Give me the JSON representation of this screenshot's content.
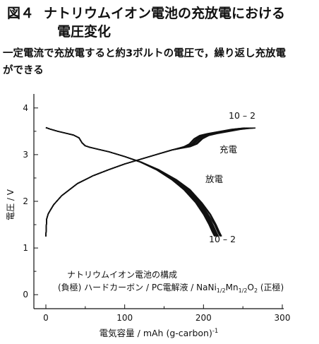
{
  "figure": {
    "number": "図４",
    "title_line1": "ナトリウムイオン電池の充放電における",
    "title_line2": "電圧変化",
    "subtitle_line1": "一定電流で充放電すると約3ボルトの電圧で，繰り返し充放電",
    "subtitle_line2": "ができる"
  },
  "chart_data": {
    "type": "line",
    "title": "",
    "xlabel": "電気容量 / mAh (g-carbon)",
    "xlabel_superscript": "-1",
    "ylabel": "電圧 / V",
    "xlim": [
      0,
      300
    ],
    "ylim": [
      -0.3,
      4.3
    ],
    "xticks": [
      0,
      100,
      200,
      300
    ],
    "yticks": [
      0,
      1,
      2,
      3,
      4
    ],
    "grid": false,
    "cycles": "10 – 2",
    "series": [
      {
        "name": "充電",
        "cycle_label": "10 – 2",
        "curves": [
          {
            "x": [
              0,
              1,
              3,
              6,
              10,
              20,
              40,
              60,
              80,
              100,
              120,
              140,
              160,
              175,
              182,
              188,
              195,
              205,
              215,
              225,
              235,
              245,
              252
            ],
            "y": [
              1.25,
              1.62,
              1.73,
              1.82,
              1.93,
              2.12,
              2.38,
              2.55,
              2.68,
              2.8,
              2.9,
              3.0,
              3.1,
              3.17,
              3.23,
              3.34,
              3.41,
              3.45,
              3.48,
              3.51,
              3.54,
              3.56,
              3.57
            ]
          },
          {
            "x": [
              0,
              1,
              3,
              6,
              10,
              20,
              40,
              60,
              80,
              100,
              120,
              140,
              160,
              176,
              183,
              189,
              196,
              206,
              216,
              226,
              236,
              246,
              253
            ],
            "y": [
              1.25,
              1.62,
              1.73,
              1.82,
              1.93,
              2.12,
              2.38,
              2.55,
              2.68,
              2.8,
              2.9,
              3.0,
              3.1,
              3.17,
              3.23,
              3.34,
              3.41,
              3.45,
              3.48,
              3.51,
              3.54,
              3.56,
              3.57
            ]
          },
          {
            "x": [
              0,
              1,
              3,
              6,
              10,
              20,
              40,
              60,
              80,
              100,
              120,
              140,
              160,
              177,
              185,
              191,
              198,
              208,
              218,
              228,
              238,
              248,
              255
            ],
            "y": [
              1.25,
              1.62,
              1.73,
              1.82,
              1.93,
              2.12,
              2.38,
              2.55,
              2.68,
              2.8,
              2.9,
              3.0,
              3.1,
              3.17,
              3.23,
              3.34,
              3.41,
              3.45,
              3.48,
              3.51,
              3.54,
              3.56,
              3.57
            ]
          },
          {
            "x": [
              0,
              1,
              3,
              6,
              10,
              20,
              40,
              60,
              80,
              100,
              120,
              140,
              160,
              178,
              186,
              192,
              199,
              209,
              219,
              229,
              239,
              249,
              256
            ],
            "y": [
              1.25,
              1.62,
              1.73,
              1.82,
              1.93,
              2.12,
              2.38,
              2.55,
              2.68,
              2.8,
              2.9,
              3.0,
              3.1,
              3.17,
              3.23,
              3.34,
              3.41,
              3.45,
              3.48,
              3.51,
              3.54,
              3.56,
              3.57
            ]
          },
          {
            "x": [
              0,
              1,
              3,
              6,
              10,
              20,
              40,
              60,
              80,
              100,
              120,
              140,
              160,
              179,
              187,
              194,
              201,
              211,
              221,
              231,
              241,
              251,
              258
            ],
            "y": [
              1.25,
              1.62,
              1.73,
              1.82,
              1.93,
              2.12,
              2.38,
              2.55,
              2.68,
              2.8,
              2.9,
              3.0,
              3.1,
              3.17,
              3.23,
              3.34,
              3.41,
              3.45,
              3.48,
              3.51,
              3.54,
              3.56,
              3.57
            ]
          },
          {
            "x": [
              0,
              1,
              3,
              6,
              10,
              20,
              40,
              60,
              80,
              100,
              120,
              140,
              160,
              180,
              188,
              195,
              202,
              212,
              222,
              232,
              242,
              252,
              260
            ],
            "y": [
              1.25,
              1.62,
              1.73,
              1.82,
              1.93,
              2.12,
              2.38,
              2.55,
              2.68,
              2.8,
              2.9,
              3.0,
              3.1,
              3.17,
              3.23,
              3.34,
              3.41,
              3.45,
              3.48,
              3.51,
              3.54,
              3.56,
              3.57
            ]
          },
          {
            "x": [
              0,
              1,
              3,
              6,
              10,
              20,
              40,
              60,
              80,
              100,
              120,
              140,
              160,
              181,
              190,
              197,
              204,
              214,
              224,
              234,
              244,
              254,
              262
            ],
            "y": [
              1.25,
              1.62,
              1.73,
              1.82,
              1.93,
              2.12,
              2.38,
              2.55,
              2.68,
              2.8,
              2.9,
              3.0,
              3.1,
              3.17,
              3.23,
              3.34,
              3.41,
              3.45,
              3.48,
              3.51,
              3.54,
              3.56,
              3.57
            ]
          },
          {
            "x": [
              0,
              1,
              3,
              6,
              10,
              20,
              40,
              60,
              80,
              100,
              120,
              140,
              160,
              182,
              191,
              198,
              205,
              215,
              225,
              235,
              245,
              255,
              264
            ],
            "y": [
              1.25,
              1.62,
              1.73,
              1.82,
              1.93,
              2.12,
              2.38,
              2.55,
              2.68,
              2.8,
              2.9,
              3.0,
              3.1,
              3.17,
              3.23,
              3.34,
              3.41,
              3.45,
              3.48,
              3.51,
              3.54,
              3.56,
              3.57
            ]
          },
          {
            "x": [
              0,
              1,
              3,
              6,
              10,
              20,
              40,
              60,
              80,
              100,
              120,
              140,
              160,
              183,
              192,
              199,
              207,
              217,
              227,
              237,
              247,
              257,
              266
            ],
            "y": [
              1.25,
              1.62,
              1.73,
              1.82,
              1.93,
              2.12,
              2.38,
              2.55,
              2.68,
              2.8,
              2.9,
              3.0,
              3.1,
              3.17,
              3.23,
              3.34,
              3.41,
              3.45,
              3.48,
              3.51,
              3.54,
              3.56,
              3.57
            ]
          }
        ]
      },
      {
        "name": "放電",
        "cycle_label": "10 – 2",
        "curves": [
          {
            "x": [
              0,
              5,
              15,
              25,
              35,
              42,
              46,
              50,
              55,
              65,
              80,
              100,
              120,
              140,
              160,
              175,
              190,
              200,
              207,
              211,
              214
            ],
            "y": [
              3.58,
              3.55,
              3.5,
              3.46,
              3.42,
              3.36,
              3.25,
              3.19,
              3.16,
              3.12,
              3.06,
              2.96,
              2.84,
              2.68,
              2.46,
              2.25,
              1.97,
              1.72,
              1.5,
              1.35,
              1.25
            ]
          },
          {
            "x": [
              0,
              5,
              15,
              25,
              35,
              42,
              46,
              50,
              55,
              65,
              80,
              100,
              120,
              140,
              160,
              176,
              191,
              201,
              208,
              212,
              215
            ],
            "y": [
              3.58,
              3.55,
              3.5,
              3.46,
              3.42,
              3.36,
              3.25,
              3.19,
              3.16,
              3.12,
              3.06,
              2.96,
              2.84,
              2.68,
              2.46,
              2.25,
              1.97,
              1.72,
              1.5,
              1.35,
              1.25
            ]
          },
          {
            "x": [
              0,
              5,
              15,
              25,
              35,
              42,
              46,
              50,
              55,
              65,
              80,
              100,
              120,
              140,
              161,
              177,
              192,
              202,
              209,
              213,
              216
            ],
            "y": [
              3.58,
              3.55,
              3.5,
              3.46,
              3.42,
              3.36,
              3.25,
              3.19,
              3.16,
              3.12,
              3.06,
              2.96,
              2.84,
              2.68,
              2.46,
              2.25,
              1.97,
              1.72,
              1.5,
              1.35,
              1.25
            ]
          },
          {
            "x": [
              0,
              5,
              15,
              25,
              35,
              42,
              46,
              50,
              55,
              65,
              80,
              100,
              120,
              141,
              162,
              178,
              193,
              203,
              210,
              214,
              217
            ],
            "y": [
              3.58,
              3.55,
              3.5,
              3.46,
              3.42,
              3.36,
              3.25,
              3.19,
              3.16,
              3.12,
              3.06,
              2.96,
              2.84,
              2.68,
              2.46,
              2.25,
              1.97,
              1.72,
              1.5,
              1.35,
              1.25
            ]
          },
          {
            "x": [
              0,
              5,
              15,
              25,
              35,
              42,
              46,
              50,
              55,
              65,
              80,
              100,
              120,
              141,
              162,
              179,
              194,
              204,
              211,
              215,
              218
            ],
            "y": [
              3.58,
              3.55,
              3.5,
              3.46,
              3.42,
              3.36,
              3.25,
              3.19,
              3.16,
              3.12,
              3.06,
              2.96,
              2.84,
              2.68,
              2.46,
              2.25,
              1.97,
              1.72,
              1.5,
              1.35,
              1.25
            ]
          },
          {
            "x": [
              0,
              5,
              15,
              25,
              35,
              42,
              46,
              50,
              55,
              65,
              80,
              100,
              121,
              142,
              163,
              180,
              195,
              205,
              212,
              216,
              219
            ],
            "y": [
              3.58,
              3.55,
              3.5,
              3.46,
              3.42,
              3.36,
              3.25,
              3.19,
              3.16,
              3.12,
              3.06,
              2.96,
              2.84,
              2.68,
              2.46,
              2.25,
              1.97,
              1.72,
              1.5,
              1.35,
              1.25
            ]
          },
          {
            "x": [
              0,
              5,
              15,
              25,
              35,
              42,
              46,
              50,
              55,
              65,
              80,
              100,
              121,
              142,
              164,
              181,
              196,
              206,
              214,
              218,
              221
            ],
            "y": [
              3.58,
              3.55,
              3.5,
              3.46,
              3.42,
              3.36,
              3.25,
              3.19,
              3.16,
              3.12,
              3.06,
              2.96,
              2.84,
              2.68,
              2.46,
              2.25,
              1.97,
              1.72,
              1.5,
              1.35,
              1.25
            ]
          },
          {
            "x": [
              0,
              5,
              15,
              25,
              35,
              42,
              46,
              50,
              55,
              65,
              80,
              100,
              121,
              143,
              165,
              182,
              197,
              208,
              215,
              219,
              222
            ],
            "y": [
              3.58,
              3.55,
              3.5,
              3.46,
              3.42,
              3.36,
              3.25,
              3.19,
              3.16,
              3.12,
              3.06,
              2.96,
              2.84,
              2.68,
              2.46,
              2.25,
              1.97,
              1.72,
              1.5,
              1.35,
              1.25
            ]
          },
          {
            "x": [
              0,
              5,
              15,
              25,
              35,
              42,
              46,
              50,
              55,
              65,
              80,
              100,
              121,
              143,
              166,
              183,
              198,
              209,
              216,
              220,
              223
            ],
            "y": [
              3.58,
              3.55,
              3.5,
              3.46,
              3.42,
              3.36,
              3.25,
              3.19,
              3.16,
              3.12,
              3.06,
              2.96,
              2.84,
              2.68,
              2.46,
              2.25,
              1.97,
              1.72,
              1.5,
              1.35,
              1.25
            ]
          }
        ]
      }
    ],
    "annotations": {
      "charge_label": "充電",
      "discharge_label": "放電",
      "cycle_label_top": "10 – 2",
      "cycle_label_bottom": "10 – 2",
      "legend_line1": "ナトリウムイオン電池の構成",
      "legend_line2_a": "(負極) ハードカーボン / PC電解液 / NaNi",
      "legend_sub1": "1/2",
      "legend_line2_b": "Mn",
      "legend_sub2": "1/2",
      "legend_line2_c": "O",
      "legend_sub3": "2",
      "legend_line2_d": " (正極)"
    },
    "line_color": "#111111"
  }
}
